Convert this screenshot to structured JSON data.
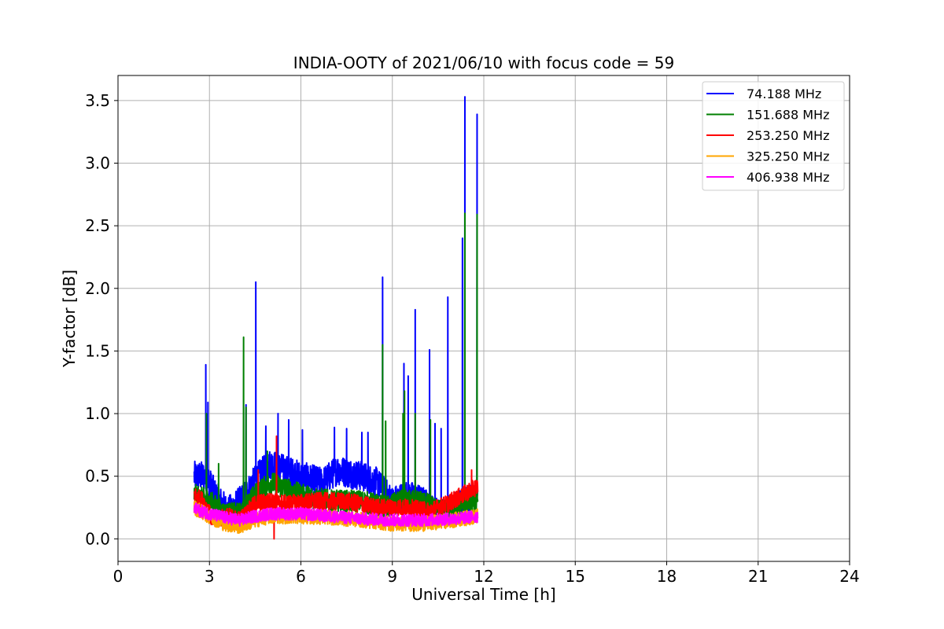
{
  "chart_data": {
    "type": "line",
    "title": "INDIA-OOTY of 2021/06/10 with focus code = 59",
    "xlabel": "Universal Time [h]",
    "ylabel": "Y-factor [dB]",
    "xlim": [
      0,
      24
    ],
    "ylim": [
      -0.18,
      3.7
    ],
    "x_ticks": [
      0,
      3,
      6,
      9,
      12,
      15,
      18,
      21,
      24
    ],
    "x_tick_labels": [
      "0",
      "3",
      "6",
      "9",
      "12",
      "15",
      "18",
      "21",
      "24"
    ],
    "y_ticks": [
      0.0,
      0.5,
      1.0,
      1.5,
      2.0,
      2.5,
      3.0,
      3.5
    ],
    "y_tick_labels": [
      "0.0",
      "0.5",
      "1.0",
      "1.5",
      "2.0",
      "2.5",
      "3.0",
      "3.5"
    ],
    "grid": true,
    "legend_position": "top-right",
    "x_range_of_data": [
      2.5,
      11.8
    ],
    "series": [
      {
        "name": " 74.188 MHz",
        "color": "#0000ff",
        "baseline": [
          [
            2.5,
            0.5
          ],
          [
            2.9,
            0.5
          ],
          [
            3.2,
            0.35
          ],
          [
            3.6,
            0.22
          ],
          [
            4.0,
            0.3
          ],
          [
            4.6,
            0.5
          ],
          [
            5.0,
            0.6
          ],
          [
            5.5,
            0.55
          ],
          [
            6.0,
            0.5
          ],
          [
            6.7,
            0.45
          ],
          [
            7.2,
            0.55
          ],
          [
            8.0,
            0.5
          ],
          [
            8.5,
            0.45
          ],
          [
            9.0,
            0.3
          ],
          [
            9.5,
            0.35
          ],
          [
            10.0,
            0.3
          ],
          [
            10.5,
            0.2
          ],
          [
            11.0,
            0.25
          ],
          [
            11.5,
            0.3
          ],
          [
            11.8,
            0.35
          ]
        ],
        "noise": 0.12,
        "spikes": [
          [
            2.88,
            1.39
          ],
          [
            2.95,
            1.09
          ],
          [
            4.2,
            1.07
          ],
          [
            4.52,
            2.05
          ],
          [
            4.85,
            0.9
          ],
          [
            5.25,
            1.0
          ],
          [
            5.6,
            0.95
          ],
          [
            6.05,
            0.87
          ],
          [
            7.1,
            0.89
          ],
          [
            7.5,
            0.88
          ],
          [
            8.0,
            0.85
          ],
          [
            8.2,
            0.85
          ],
          [
            8.68,
            2.09
          ],
          [
            9.38,
            1.4
          ],
          [
            9.52,
            1.3
          ],
          [
            9.75,
            1.83
          ],
          [
            10.22,
            1.51
          ],
          [
            10.4,
            0.92
          ],
          [
            10.6,
            0.88
          ],
          [
            10.82,
            1.93
          ],
          [
            11.3,
            2.4
          ],
          [
            11.38,
            3.53
          ],
          [
            11.78,
            3.39
          ]
        ]
      },
      {
        "name": "151.688 MHz",
        "color": "#008000",
        "baseline": [
          [
            2.5,
            0.35
          ],
          [
            3.0,
            0.3
          ],
          [
            3.5,
            0.2
          ],
          [
            4.0,
            0.2
          ],
          [
            4.5,
            0.35
          ],
          [
            5.0,
            0.45
          ],
          [
            5.5,
            0.4
          ],
          [
            6.0,
            0.35
          ],
          [
            7.0,
            0.3
          ],
          [
            8.0,
            0.3
          ],
          [
            8.8,
            0.25
          ],
          [
            9.3,
            0.3
          ],
          [
            10.0,
            0.3
          ],
          [
            10.5,
            0.22
          ],
          [
            11.0,
            0.25
          ],
          [
            11.8,
            0.3
          ]
        ],
        "noise": 0.09,
        "spikes": [
          [
            2.9,
            1.0
          ],
          [
            3.3,
            0.6
          ],
          [
            4.12,
            1.61
          ],
          [
            4.2,
            1.05
          ],
          [
            4.9,
            0.7
          ],
          [
            8.68,
            1.55
          ],
          [
            8.78,
            0.94
          ],
          [
            9.35,
            1.0
          ],
          [
            9.4,
            1.18
          ],
          [
            9.75,
            1.0
          ],
          [
            10.25,
            0.95
          ],
          [
            11.38,
            2.6
          ],
          [
            11.78,
            2.59
          ]
        ]
      },
      {
        "name": "253.250 MHz",
        "color": "#ff0000",
        "baseline": [
          [
            2.5,
            0.35
          ],
          [
            2.8,
            0.3
          ],
          [
            3.1,
            0.15
          ],
          [
            3.6,
            0.18
          ],
          [
            4.0,
            0.15
          ],
          [
            4.5,
            0.28
          ],
          [
            5.0,
            0.3
          ],
          [
            5.5,
            0.28
          ],
          [
            6.5,
            0.3
          ],
          [
            7.5,
            0.3
          ],
          [
            8.5,
            0.25
          ],
          [
            9.5,
            0.25
          ],
          [
            10.2,
            0.22
          ],
          [
            10.8,
            0.28
          ],
          [
            11.3,
            0.35
          ],
          [
            11.8,
            0.42
          ]
        ],
        "noise": 0.07,
        "spikes": [
          [
            5.2,
            0.82
          ],
          [
            5.12,
            0.0
          ],
          [
            4.6,
            0.55
          ],
          [
            11.6,
            0.55
          ]
        ]
      },
      {
        "name": "325.250 MHz",
        "color": "#ffa500",
        "baseline": [
          [
            2.5,
            0.25
          ],
          [
            3.0,
            0.18
          ],
          [
            3.5,
            0.12
          ],
          [
            4.0,
            0.1
          ],
          [
            4.5,
            0.15
          ],
          [
            5.0,
            0.18
          ],
          [
            6.0,
            0.18
          ],
          [
            7.0,
            0.17
          ],
          [
            8.0,
            0.15
          ],
          [
            9.0,
            0.12
          ],
          [
            10.0,
            0.12
          ],
          [
            11.0,
            0.15
          ],
          [
            11.8,
            0.18
          ]
        ],
        "noise": 0.06,
        "spikes": []
      },
      {
        "name": "406.938 MHz",
        "color": "#ff00ff",
        "baseline": [
          [
            2.5,
            0.24
          ],
          [
            3.0,
            0.2
          ],
          [
            3.5,
            0.17
          ],
          [
            4.0,
            0.15
          ],
          [
            4.5,
            0.18
          ],
          [
            5.0,
            0.2
          ],
          [
            6.0,
            0.2
          ],
          [
            7.0,
            0.18
          ],
          [
            8.0,
            0.16
          ],
          [
            9.0,
            0.15
          ],
          [
            10.0,
            0.15
          ],
          [
            11.0,
            0.16
          ],
          [
            11.8,
            0.18
          ]
        ],
        "noise": 0.05,
        "spikes": []
      }
    ]
  }
}
